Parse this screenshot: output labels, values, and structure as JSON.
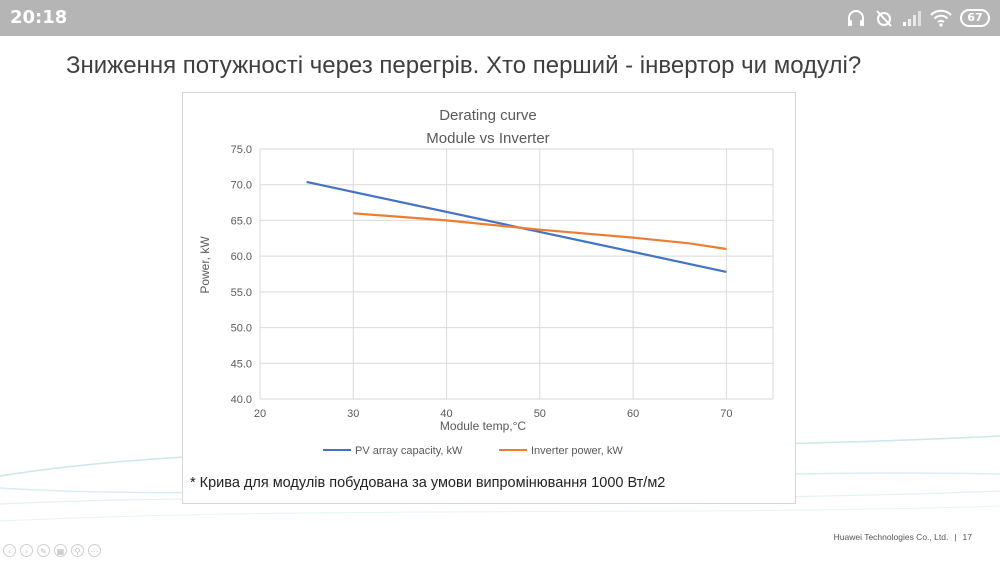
{
  "status_bar": {
    "time": "20:18",
    "battery": "67",
    "icons": [
      "headphones-icon",
      "alarm-off-icon",
      "signal-icon",
      "wifi-icon",
      "battery-icon"
    ]
  },
  "slide": {
    "title": "Зниження потужності через перегрів. Хто перший - інвертор чи модулі?",
    "footnote": "* Крива для модулів побудована за умови випромінювання 1000 Вт/м2",
    "footer_company": "Huawei Technologies Co., Ltd.",
    "footer_separator": "|",
    "page_number": "17",
    "controls": [
      "prev-icon",
      "next-icon",
      "pen-icon",
      "slides-icon",
      "zoom-icon",
      "more-icon"
    ]
  },
  "colors": {
    "pv_series": "#4472c4",
    "inverter_series": "#ed7d31",
    "grid": "#d9d9d9",
    "axis_text": "#595959"
  },
  "chart_data": {
    "type": "line",
    "title": "Derating curve",
    "subtitle": "Module vs Inverter",
    "xlabel": "Module temp,°C",
    "ylabel": "Power, kW",
    "xlim": [
      20,
      75
    ],
    "ylim": [
      40,
      75
    ],
    "x_ticks": [
      "20",
      "30",
      "40",
      "50",
      "60",
      "70"
    ],
    "y_ticks": [
      "40.0",
      "45.0",
      "50.0",
      "55.0",
      "60.0",
      "65.0",
      "70.0",
      "75.0"
    ],
    "grid": true,
    "legend_position": "bottom",
    "series": [
      {
        "name": "PV array capacity, kW",
        "color": "#4472c4",
        "x": [
          25,
          70
        ],
        "y": [
          70.4,
          57.8
        ]
      },
      {
        "name": "Inverter power, kW",
        "color": "#ed7d31",
        "x": [
          30,
          40,
          50,
          60,
          66,
          70
        ],
        "y": [
          66.0,
          65.0,
          63.7,
          62.6,
          61.8,
          61.0
        ]
      }
    ]
  }
}
